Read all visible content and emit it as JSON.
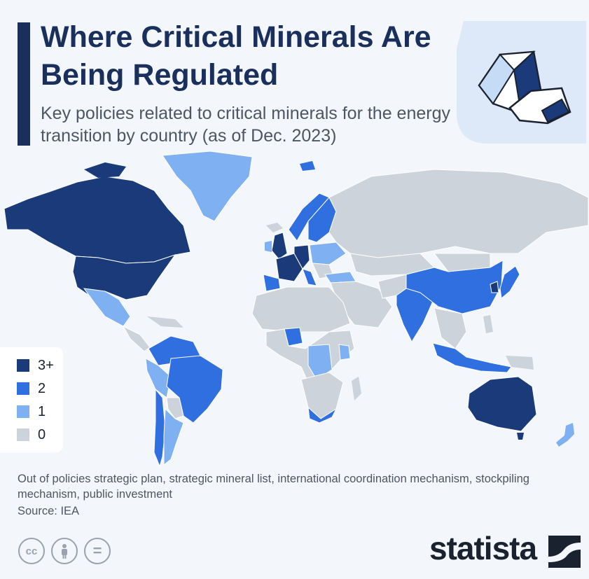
{
  "title": "Where Critical Minerals Are Being Regulated",
  "subtitle": "Key policies related to critical minerals for the energy transition by country (as of Dec. 2023)",
  "colors": {
    "level_3plus": "#1a3a7a",
    "level_2": "#2f6fe0",
    "level_1": "#7fb0f2",
    "level_0": "#ccd3da",
    "title": "#1a2f5c",
    "background": "#f3f6fa"
  },
  "legend": [
    {
      "label": "3+",
      "color": "#1a3a7a"
    },
    {
      "label": "2",
      "color": "#2f6fe0"
    },
    {
      "label": "1",
      "color": "#7fb0f2"
    },
    {
      "label": "0",
      "color": "#ccd3da"
    }
  ],
  "note": "Out of policies strategic plan, strategic mineral list, international coordination mechanism, stockpiling mechanism, public investment",
  "source": "Source: IEA",
  "license_icons": [
    "cc-icon",
    "person-icon",
    "equals-icon"
  ],
  "license_labels": {
    "cc": "cc",
    "equals": "="
  },
  "brand": "statista"
}
